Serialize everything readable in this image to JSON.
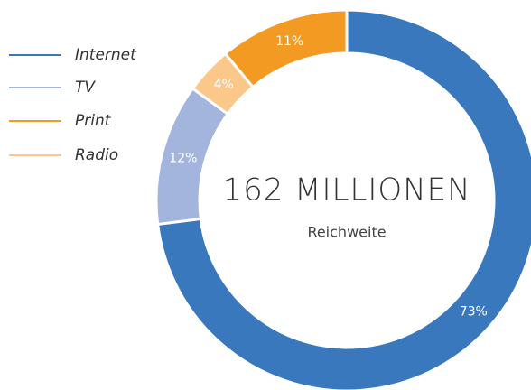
{
  "chart_data": {
    "type": "donut",
    "title": "162 MILLIONEN",
    "subtitle": "Reichweite",
    "categories": [
      "Internet",
      "TV",
      "Radio",
      "Print"
    ],
    "values": [
      73,
      12,
      4,
      11
    ],
    "value_labels": [
      "73%",
      "12%",
      "4%",
      "11%"
    ],
    "colors": [
      "#3a78be",
      "#a3b5dc",
      "#fbc88a",
      "#f39a22"
    ]
  }
}
